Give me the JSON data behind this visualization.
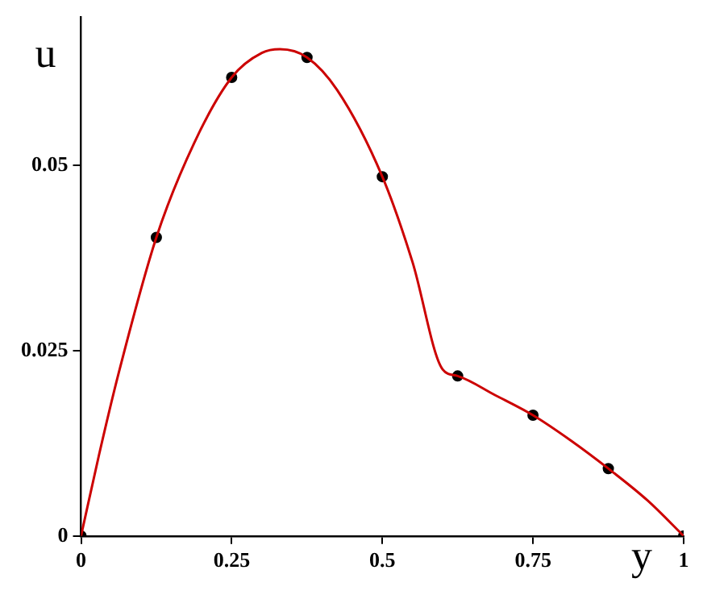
{
  "chart_data": {
    "type": "line",
    "xlabel": "y",
    "ylabel": "u",
    "xlim": [
      0,
      1
    ],
    "ylim": [
      0,
      0.07
    ],
    "xticks": [
      0,
      0.25,
      0.5,
      0.75,
      1
    ],
    "yticks": [
      0,
      0.025,
      0.05
    ],
    "grid": false,
    "legend": false,
    "series": [
      {
        "type": "line",
        "color": "#cc0000",
        "marker": "none",
        "x": [
          0,
          0.03,
          0.0625,
          0.125,
          0.1875,
          0.25,
          0.3,
          0.33,
          0.375,
          0.425,
          0.5,
          0.55,
          0.6,
          0.625,
          0.6875,
          0.75,
          0.8125,
          0.875,
          0.94,
          1
        ],
        "values": [
          0,
          0.011,
          0.022,
          0.0403,
          0.053,
          0.0619,
          0.0652,
          0.0657,
          0.0646,
          0.0602,
          0.0485,
          0.037,
          0.0225,
          0.0216,
          0.019,
          0.0163,
          0.0129,
          0.0091,
          0.0048,
          0
        ]
      },
      {
        "type": "scatter",
        "color": "#000000",
        "marker": "circle",
        "x": [
          0,
          0.125,
          0.25,
          0.375,
          0.5,
          0.625,
          0.75,
          0.875,
          1
        ],
        "values": [
          0,
          0.0403,
          0.0619,
          0.0646,
          0.0485,
          0.0216,
          0.0163,
          0.0091,
          0
        ]
      }
    ]
  }
}
